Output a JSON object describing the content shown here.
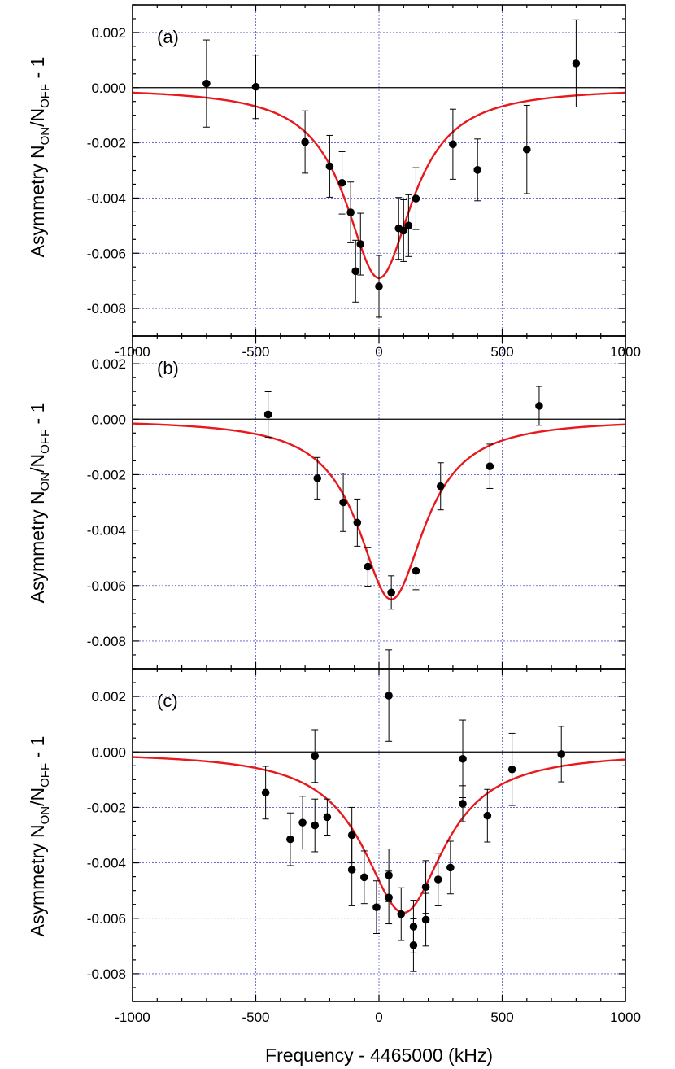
{
  "figure": {
    "xlabel": "Frequency - 4465000 (kHz)",
    "ylabel": {
      "prefix": "Asymmetry N",
      "sub1": "ON",
      "mid": "/N",
      "sub2": "OFF",
      "suffix": " - 1"
    },
    "colors": {
      "fit": "#e8191c",
      "grid": "#5555cc",
      "points": "#000000"
    }
  },
  "chart_data": [
    {
      "type": "scatter",
      "panel_label": "(a)",
      "xlim": [
        -1000,
        1000
      ],
      "ylim": [
        -0.009,
        0.003
      ],
      "x_ticks": [
        -1000,
        -500,
        0,
        500,
        1000
      ],
      "x_tick_labels": [
        "-1000",
        "-500",
        "0",
        "500",
        "1000"
      ],
      "y_ticks": [
        -0.008,
        -0.006,
        -0.004,
        -0.002,
        0.0,
        0.002
      ],
      "y_tick_labels": [
        "-0.008",
        "-0.006",
        "-0.004",
        "-0.002",
        "0.000",
        "0.002"
      ],
      "grid": true,
      "points": [
        {
          "x": -700,
          "y": 0.00015,
          "err": 0.00158
        },
        {
          "x": -500,
          "y": 3e-05,
          "err": 0.00115
        },
        {
          "x": -300,
          "y": -0.00197,
          "err": 0.00113
        },
        {
          "x": -200,
          "y": -0.00285,
          "err": 0.00112
        },
        {
          "x": -150,
          "y": -0.00345,
          "err": 0.00113
        },
        {
          "x": -115,
          "y": -0.00452,
          "err": 0.0011
        },
        {
          "x": -95,
          "y": -0.00665,
          "err": 0.00112
        },
        {
          "x": -75,
          "y": -0.00567,
          "err": 0.00112
        },
        {
          "x": 0,
          "y": -0.0072,
          "err": 0.00112
        },
        {
          "x": 80,
          "y": -0.0051,
          "err": 0.00112
        },
        {
          "x": 100,
          "y": -0.00518,
          "err": 0.00112
        },
        {
          "x": 120,
          "y": -0.005,
          "err": 0.00112
        },
        {
          "x": 150,
          "y": -0.00402,
          "err": 0.00112
        },
        {
          "x": 300,
          "y": -0.00205,
          "err": 0.00127
        },
        {
          "x": 400,
          "y": -0.00298,
          "err": 0.00112
        },
        {
          "x": 600,
          "y": -0.00224,
          "err": 0.0016
        },
        {
          "x": 800,
          "y": 0.00088,
          "err": 0.00158
        }
      ],
      "fit": {
        "center": 0,
        "depth": -0.0069,
        "hwhm": 165
      }
    },
    {
      "type": "scatter",
      "panel_label": "(b)",
      "xlim": [
        -1000,
        1000
      ],
      "ylim": [
        -0.009,
        0.003
      ],
      "x_ticks": [
        -1000,
        -500,
        0,
        500,
        1000
      ],
      "y_ticks": [
        -0.008,
        -0.006,
        -0.004,
        -0.002,
        0.0,
        0.002
      ],
      "y_tick_labels": [
        "-0.008",
        "-0.006",
        "-0.004",
        "-0.002",
        "0.000",
        "0.002"
      ],
      "grid": true,
      "points": [
        {
          "x": -450,
          "y": 0.00017,
          "err": 0.00082
        },
        {
          "x": -250,
          "y": -0.00213,
          "err": 0.00075
        },
        {
          "x": -145,
          "y": -0.003,
          "err": 0.00105
        },
        {
          "x": -88,
          "y": -0.00373,
          "err": 0.00085
        },
        {
          "x": -45,
          "y": -0.00532,
          "err": 0.0007
        },
        {
          "x": 50,
          "y": -0.00625,
          "err": 0.0006
        },
        {
          "x": 150,
          "y": -0.00547,
          "err": 0.00068
        },
        {
          "x": 250,
          "y": -0.00242,
          "err": 0.00085
        },
        {
          "x": 450,
          "y": -0.0017,
          "err": 0.0008
        },
        {
          "x": 650,
          "y": 0.00048,
          "err": 0.0007
        }
      ],
      "fit": {
        "center": 50,
        "depth": -0.0065,
        "hwhm": 165
      }
    },
    {
      "type": "scatter",
      "panel_label": "(c)",
      "xlim": [
        -1000,
        1000
      ],
      "ylim": [
        -0.009,
        0.003
      ],
      "x_ticks": [
        -1000,
        -500,
        0,
        500,
        1000
      ],
      "x_tick_labels": [
        "-1000",
        "-500",
        "0",
        "500",
        "1000"
      ],
      "y_ticks": [
        -0.008,
        -0.006,
        -0.004,
        -0.002,
        0.0,
        0.002
      ],
      "y_tick_labels": [
        "-0.008",
        "-0.006",
        "-0.004",
        "-0.002",
        "0.000",
        "0.002"
      ],
      "grid": true,
      "points": [
        {
          "x": -460,
          "y": -0.00147,
          "err": 0.00095
        },
        {
          "x": -360,
          "y": -0.00315,
          "err": 0.00095
        },
        {
          "x": -310,
          "y": -0.00255,
          "err": 0.00095
        },
        {
          "x": -260,
          "y": -0.00015,
          "err": 0.00095
        },
        {
          "x": -260,
          "y": -0.00265,
          "err": 0.00095
        },
        {
          "x": -210,
          "y": -0.00235,
          "err": 0.00065
        },
        {
          "x": -110,
          "y": -0.003,
          "err": 0.001
        },
        {
          "x": -110,
          "y": -0.00425,
          "err": 0.0013
        },
        {
          "x": -60,
          "y": -0.00452,
          "err": 0.00095
        },
        {
          "x": -10,
          "y": -0.0056,
          "err": 0.00095
        },
        {
          "x": 40,
          "y": 0.00203,
          "err": 0.00165
        },
        {
          "x": 40,
          "y": -0.00445,
          "err": 0.00095
        },
        {
          "x": 40,
          "y": -0.00525,
          "err": 0.00095
        },
        {
          "x": 90,
          "y": -0.00585,
          "err": 0.00095
        },
        {
          "x": 140,
          "y": -0.0063,
          "err": 0.00095
        },
        {
          "x": 140,
          "y": -0.00697,
          "err": 0.00095
        },
        {
          "x": 190,
          "y": -0.00487,
          "err": 0.00095
        },
        {
          "x": 190,
          "y": -0.00605,
          "err": 0.00095
        },
        {
          "x": 240,
          "y": -0.0046,
          "err": 0.00095
        },
        {
          "x": 290,
          "y": -0.00417,
          "err": 0.00095
        },
        {
          "x": 340,
          "y": -0.00025,
          "err": 0.0014
        },
        {
          "x": 340,
          "y": -0.00187,
          "err": 0.00065
        },
        {
          "x": 440,
          "y": -0.0023,
          "err": 0.00095
        },
        {
          "x": 540,
          "y": -0.00063,
          "err": 0.0013
        },
        {
          "x": 740,
          "y": -8e-05,
          "err": 0.001
        }
      ],
      "fit": {
        "center": 100,
        "depth": -0.0058,
        "hwhm": 200
      }
    }
  ]
}
